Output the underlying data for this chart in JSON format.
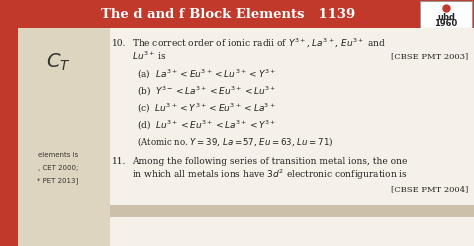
{
  "title": "The d and f Block Elements   1139",
  "logo_line1": "ubd",
  "logo_line2": "1960",
  "header_bg": "#c0392b",
  "header_text_color": "#ffffff",
  "body_bg": "#f5f0e8",
  "left_sidebar_bg": "#c0392b",
  "left_lighter_bg": "#ddd5c0",
  "q10_number": "10.",
  "q10_text": "The correct order of ionic radii of $Y^{3+}$, $La^{3+}$, $Eu^{3+}$ and",
  "q10_text2": "$Lu^{3+}$ is",
  "q10_source": "[CBSE PMT 2003]",
  "options": [
    "(a)  $La^{3+} < Eu^{3+} < Lu^{3+} < Y^{3+}$",
    "(b)  $Y^{3-} < La^{3+} < Eu^{3+} < Lu^{3+}$",
    "(c)  $Lu^{3+} < Y^{3+} < Eu^{3+} < La^{3+}$",
    "(d)  $Lu^{3+} < Eu^{3+} < La^{3+} < Y^{3+}$"
  ],
  "atomic_note": "(Atomic no. $Y = 39$, $La = 57$, $Eu = 63$, $Lu = 71$)",
  "q11_number": "11.",
  "q11_text": "Among the following series of transition metal ions, the one",
  "q11_text2": "in which all metals ions have $3d^2$ electronic configuration is",
  "q11_source": "[CBSE PMT 2004]",
  "left_text1": "elements is",
  "left_text2": ", CET 2000;",
  "left_text3": "* PET 2013]",
  "left_symbol": "$C_T$",
  "body_text_color": "#222222"
}
